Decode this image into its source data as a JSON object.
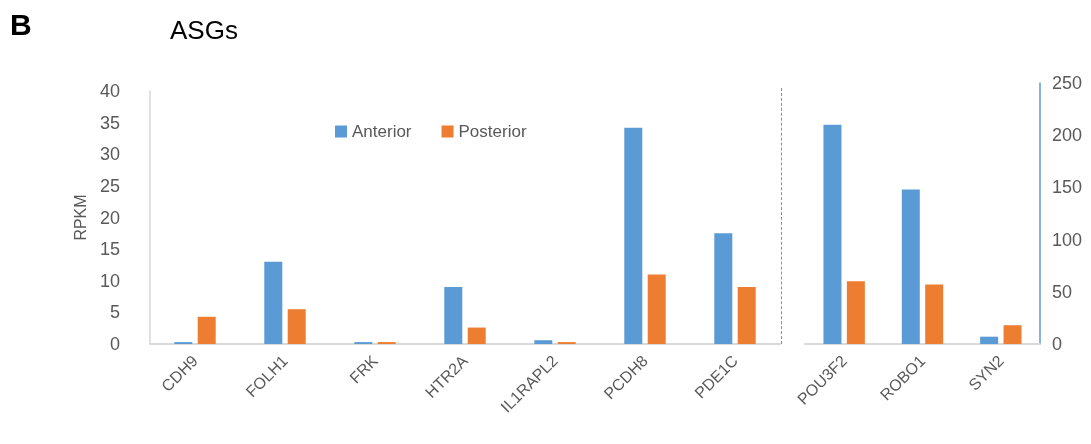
{
  "chart_data": [
    {
      "type": "bar",
      "title": "ASGs",
      "ylabel": "RPKM",
      "annotations": [
        "B"
      ],
      "categories": [
        "CDH9",
        "FOLH1",
        "FRK",
        "HTR2A",
        "IL1RAPL2",
        "PCDH8",
        "PDE1C"
      ],
      "series": [
        {
          "name": "Anterior",
          "color": "#5b9bd5",
          "values": [
            0.3,
            13,
            0.3,
            9,
            0.6,
            34.2,
            17.5
          ]
        },
        {
          "name": "Posterior",
          "color": "#ed7d31",
          "values": [
            4.3,
            5.5,
            0.3,
            2.6,
            0.3,
            11,
            9
          ]
        }
      ],
      "ylim": [
        0,
        40
      ],
      "yticks": [
        0,
        5,
        10,
        15,
        20,
        25,
        30,
        35,
        40
      ],
      "grid": false,
      "legend": "top"
    },
    {
      "type": "bar",
      "categories": [
        "POU3F2",
        "ROBO1",
        "SYN2"
      ],
      "series": [
        {
          "color": "#5b9bd5",
          "values": [
            210,
            148,
            7
          ]
        },
        {
          "color": "#ed7d31",
          "values": [
            60,
            57,
            18
          ]
        }
      ],
      "ylim": [
        0,
        250
      ],
      "yticks": [
        0,
        50,
        100,
        150,
        200,
        250
      ],
      "grid": false,
      "legend": false
    }
  ]
}
